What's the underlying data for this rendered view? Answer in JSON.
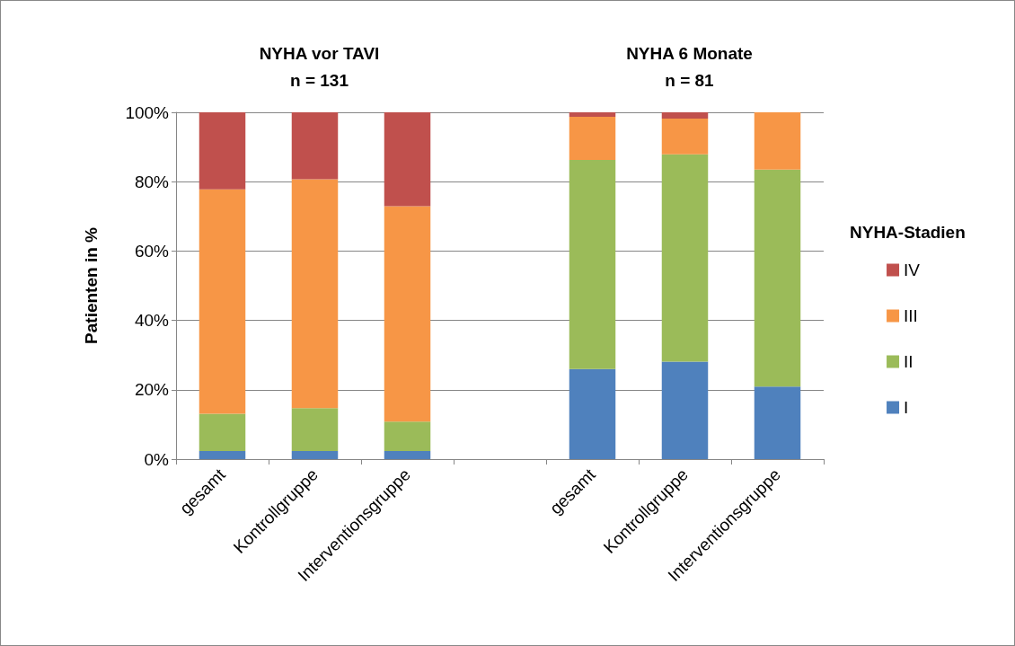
{
  "chart_data": {
    "type": "bar",
    "stacked": true,
    "annotations": [
      "NYHA vor TAVI\nn = 131",
      "NYHA 6 Monate\nn = 81"
    ],
    "ylabel": "Patienten in %",
    "legend_title": "NYHA-Stadien",
    "categories": [
      "gesamt",
      "Kontrollgruppe",
      "Interventionsgruppe",
      null,
      "gesamt",
      "Kontrollgruppe",
      "Interventionsgruppe"
    ],
    "series": [
      {
        "name": "I",
        "color": "#4f81bd",
        "values": [
          2.3,
          2.3,
          2.3,
          null,
          26.0,
          28.1,
          20.9
        ]
      },
      {
        "name": "II",
        "color": "#9bbb59",
        "values": [
          10.8,
          12.4,
          8.5,
          null,
          60.3,
          59.8,
          62.6
        ]
      },
      {
        "name": "III",
        "color": "#f79646",
        "values": [
          64.7,
          66.0,
          62.1,
          null,
          12.4,
          10.3,
          16.5
        ]
      },
      {
        "name": "IV",
        "color": "#c0504d",
        "values": [
          22.2,
          19.3,
          27.1,
          null,
          1.3,
          1.8,
          0
        ]
      }
    ],
    "ylim": [
      0,
      100
    ],
    "yticks": [
      {
        "value": 0,
        "label": "0%"
      },
      {
        "value": 20,
        "label": "20%"
      },
      {
        "value": 40,
        "label": "40%"
      },
      {
        "value": 60,
        "label": "60%"
      },
      {
        "value": 80,
        "label": "80%"
      },
      {
        "value": 100,
        "label": "100%"
      }
    ],
    "grid": "y",
    "legend": "right"
  }
}
